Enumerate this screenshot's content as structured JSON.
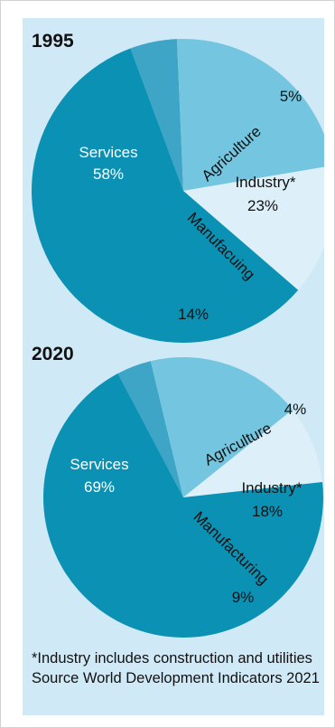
{
  "chart_data": [
    {
      "type": "pie",
      "title": "1995",
      "slices": [
        {
          "label": "Services",
          "value": 58,
          "value_label": "58%",
          "color": "#0b91b3"
        },
        {
          "label": "Agriculture",
          "value": 5,
          "value_label": "5%",
          "color": "#3ea5c6"
        },
        {
          "label": "Industry*",
          "value": 23,
          "value_label": "23%",
          "color": "#74c6e0"
        },
        {
          "label": "Manufacuing",
          "value": 14,
          "value_label": "14%",
          "color": "#ddeff8"
        }
      ]
    },
    {
      "type": "pie",
      "title": "2020",
      "slices": [
        {
          "label": "Services",
          "value": 69,
          "value_label": "69%",
          "color": "#0b91b3"
        },
        {
          "label": "Agriculture",
          "value": 4,
          "value_label": "4%",
          "color": "#3ea5c6"
        },
        {
          "label": "Industry*",
          "value": 18,
          "value_label": "18%",
          "color": "#74c6e0"
        },
        {
          "label": "Manufacturing",
          "value": 9,
          "value_label": "9%",
          "color": "#ddeff8"
        }
      ]
    }
  ],
  "footnote": "*Industry includes construction and utilities Source World Development Indicators 2021"
}
